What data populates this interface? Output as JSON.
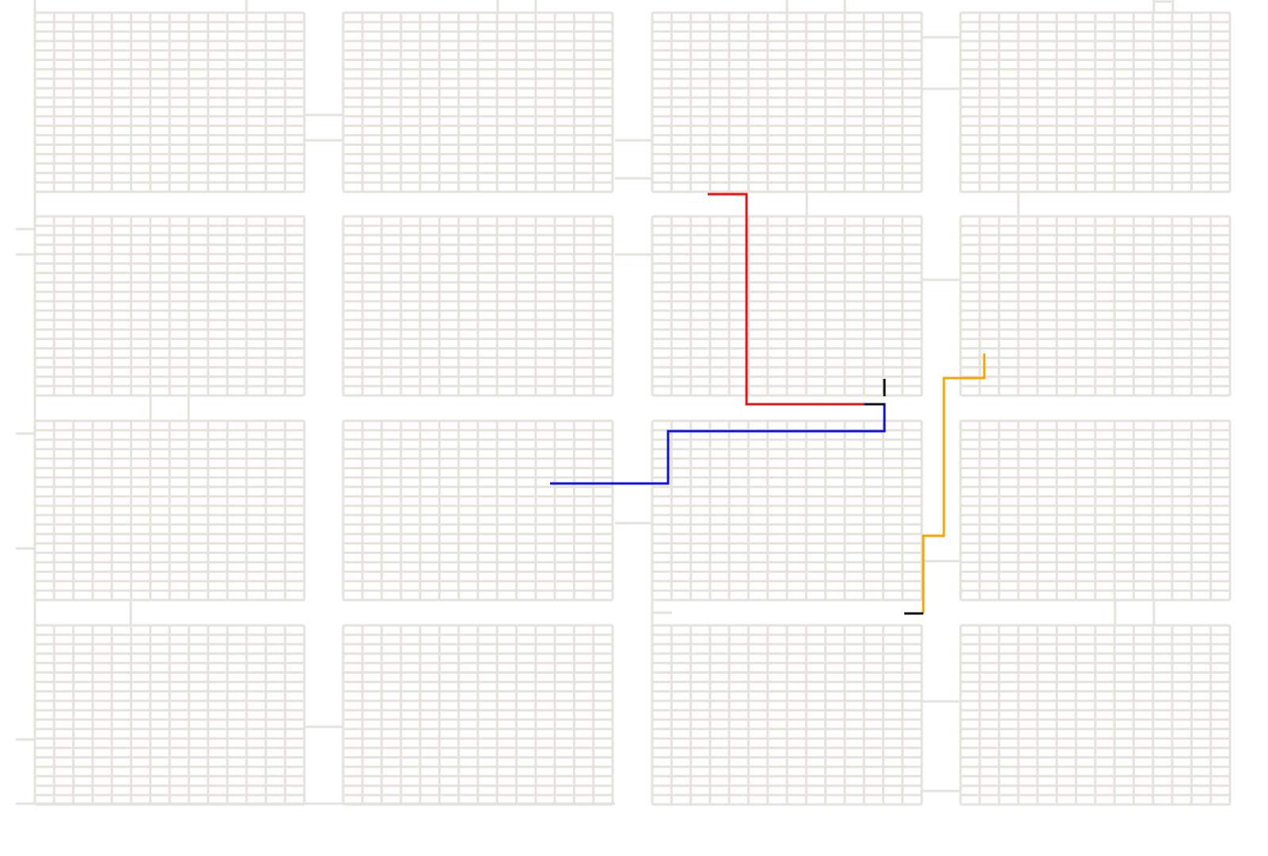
{
  "layout": {
    "block_rows": 4,
    "block_cols": 4,
    "cell_rows_per_block": 19,
    "cell_cols_per_block": 14
  },
  "colors": {
    "background": "#ffffff",
    "grid": "#e6e2dc",
    "route_red": "#ee1111",
    "route_blue": "#1111dd",
    "route_orange": "#f5a700",
    "endpoint": "#111111"
  },
  "routes": [
    {
      "name": "route-red",
      "color_key": "route_red"
    },
    {
      "name": "route-blue",
      "color_key": "route_blue"
    },
    {
      "name": "route-orange",
      "color_key": "route_orange"
    }
  ],
  "endpoints": [
    {
      "name": "endpoint-marker-red-end"
    },
    {
      "name": "endpoint-marker-blue-end"
    },
    {
      "name": "endpoint-marker-orange-end"
    }
  ]
}
